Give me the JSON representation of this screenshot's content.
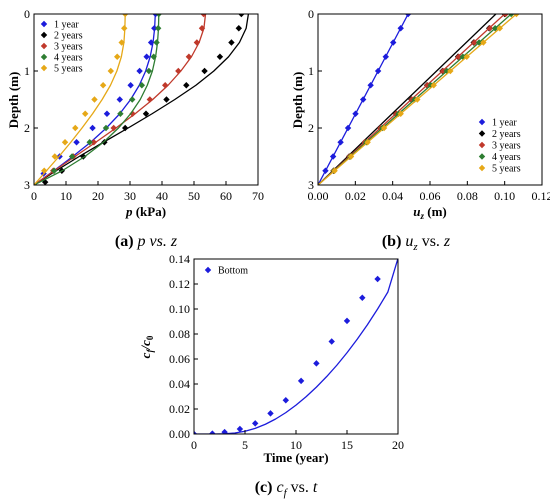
{
  "chart_data": [
    {
      "type": "line",
      "id": "a",
      "caption_tag": "(a)",
      "caption_math": "p vs. z",
      "xlabel_var": "p",
      "xlabel_unit": " (kPa)",
      "ylabel": "Depth (m)",
      "xlim": [
        0,
        70
      ],
      "ylim": [
        3,
        0
      ],
      "xticks": [
        "0",
        "10",
        "20",
        "30",
        "40",
        "50",
        "60",
        "70"
      ],
      "yticks": [
        "0",
        "1",
        "2",
        "3"
      ],
      "grid": false,
      "legend": "top-left",
      "series": [
        {
          "name": "1 year",
          "color": "#1c1cdc",
          "marker": "diamond",
          "line_x": [
            37.9,
            37.7,
            37.2,
            36.3,
            34.9,
            32.9,
            30.2,
            26.8,
            22.6,
            17.7,
            12.1,
            6.2,
            0.0
          ],
          "line_y": [
            0,
            0.25,
            0.5,
            0.75,
            1.0,
            1.25,
            1.5,
            1.75,
            2.0,
            2.25,
            2.5,
            2.75,
            3.0
          ],
          "points_x": [
            38.0,
            37.6,
            36.6,
            35.2,
            33.0,
            30.2,
            26.8,
            22.8,
            18.3,
            13.3,
            8.0,
            3.0
          ],
          "points_y": [
            0,
            0.25,
            0.5,
            0.75,
            1.0,
            1.25,
            1.5,
            1.75,
            2.0,
            2.25,
            2.5,
            2.8
          ]
        },
        {
          "name": "2 years",
          "color": "#000000",
          "marker": "diamond",
          "line_x": [
            67.0,
            66.3,
            64.2,
            60.8,
            56.2,
            50.6,
            44.0,
            36.9,
            29.4,
            21.7,
            14.1,
            6.9,
            0.0
          ],
          "line_y": [
            0,
            0.25,
            0.5,
            0.75,
            1.0,
            1.25,
            1.5,
            1.75,
            2.0,
            2.25,
            2.5,
            2.75,
            3.0
          ],
          "points_x": [
            64.8,
            64.0,
            61.7,
            58.1,
            53.3,
            47.6,
            41.4,
            35.0,
            28.5,
            22.0,
            15.4,
            8.7,
            3.5
          ],
          "points_y": [
            0,
            0.25,
            0.5,
            0.75,
            1.0,
            1.25,
            1.5,
            1.75,
            2.0,
            2.25,
            2.5,
            2.75,
            2.95
          ]
        },
        {
          "name": "3 years",
          "color": "#c0392b",
          "marker": "diamond",
          "line_x": [
            53.6,
            53.1,
            51.6,
            49.2,
            45.9,
            41.9,
            37.1,
            31.6,
            25.6,
            19.3,
            12.8,
            6.3,
            0.0
          ],
          "line_y": [
            0,
            0.25,
            0.5,
            0.75,
            1.0,
            1.25,
            1.5,
            1.75,
            2.0,
            2.25,
            2.5,
            2.75,
            3.0
          ],
          "points_x": [
            53.0,
            52.5,
            50.9,
            48.4,
            45.1,
            41.0,
            36.2,
            30.8,
            24.9,
            18.7,
            12.3,
            6.0
          ],
          "points_y": [
            0,
            0.25,
            0.5,
            0.75,
            1.0,
            1.25,
            1.5,
            1.75,
            2.0,
            2.25,
            2.5,
            2.75
          ]
        },
        {
          "name": "4 years",
          "color": "#2e7d32",
          "marker": "diamond",
          "line_x": [
            39.0,
            38.9,
            38.6,
            38.0,
            37.0,
            35.4,
            33.2,
            30.2,
            26.4,
            21.7,
            15.9,
            8.8,
            0.0
          ],
          "line_y": [
            0,
            0.25,
            0.5,
            0.75,
            1.0,
            1.25,
            1.5,
            1.75,
            2.0,
            2.25,
            2.5,
            2.75,
            3.0
          ],
          "points_x": [
            39.0,
            38.8,
            38.3,
            37.4,
            35.9,
            33.7,
            30.7,
            27.0,
            22.5,
            17.4,
            11.9,
            6.3
          ],
          "points_y": [
            0,
            0.25,
            0.5,
            0.75,
            1.0,
            1.25,
            1.5,
            1.75,
            2.0,
            2.25,
            2.5,
            2.75
          ]
        },
        {
          "name": "5 years",
          "color": "#e6a817",
          "marker": "diamond",
          "line_x": [
            28.5,
            28.4,
            28.1,
            27.3,
            25.9,
            23.9,
            21.3,
            18.3,
            15.0,
            11.5,
            7.8,
            3.9,
            0.0
          ],
          "line_y": [
            0,
            0.25,
            0.5,
            0.75,
            1.0,
            1.25,
            1.5,
            1.75,
            2.0,
            2.25,
            2.5,
            2.75,
            3.0
          ],
          "points_x": [
            28.5,
            28.2,
            27.4,
            26.0,
            24.0,
            21.6,
            18.9,
            16.0,
            12.9,
            9.7,
            6.5,
            3.2
          ],
          "points_y": [
            0,
            0.25,
            0.5,
            0.75,
            1.0,
            1.25,
            1.5,
            1.75,
            2.0,
            2.25,
            2.5,
            2.75
          ]
        }
      ]
    },
    {
      "type": "line",
      "id": "b",
      "caption_tag": "(b)",
      "caption_math": "u",
      "caption_sub": "z",
      "caption_rest": " vs. ",
      "caption_var2": "z",
      "xlabel_var": "u",
      "xlabel_sub": "z",
      "xlabel_unit": " (m)",
      "ylabel": "Depth (m)",
      "xlim": [
        0,
        0.12
      ],
      "ylim": [
        3,
        0
      ],
      "xticks": [
        "0.00",
        "0.02",
        "0.04",
        "0.06",
        "0.08",
        "0.10",
        "0.12"
      ],
      "yticks": [
        "0",
        "1",
        "2",
        "3"
      ],
      "grid": false,
      "legend": "bottom-right",
      "series": [
        {
          "name": "1 year",
          "color": "#1c1cdc",
          "marker": "diamond",
          "line_x": [
            0.0,
            0.0483
          ],
          "line_y": [
            3,
            0
          ],
          "points_x": [
            0.0483,
            0.0443,
            0.0403,
            0.0363,
            0.0322,
            0.0282,
            0.0242,
            0.0201,
            0.0161,
            0.0121,
            0.0081,
            0.004
          ],
          "points_y": [
            0,
            0.25,
            0.5,
            0.75,
            1.0,
            1.25,
            1.5,
            1.75,
            2.0,
            2.25,
            2.5,
            2.75
          ]
        },
        {
          "name": "2 years",
          "color": "#000000",
          "marker": "diamond",
          "line_x": [
            0.0,
            0.0953
          ],
          "line_y": [
            3,
            0
          ],
          "points_x": [
            0.1,
            0.0917,
            0.0834,
            0.075,
            0.0667,
            0.0584,
            0.05,
            0.0417,
            0.0334,
            0.025,
            0.0167,
            0.0083
          ],
          "points_y": [
            0,
            0.25,
            0.5,
            0.75,
            1.0,
            1.25,
            1.5,
            1.75,
            2.0,
            2.25,
            2.5,
            2.75
          ]
        },
        {
          "name": "3 years",
          "color": "#c0392b",
          "marker": "diamond",
          "line_x": [
            0.0,
            0.1
          ],
          "line_y": [
            3,
            0
          ],
          "points_x": [
            0.1005,
            0.0921,
            0.0838,
            0.0754,
            0.067,
            0.0586,
            0.0503,
            0.0419,
            0.0335,
            0.0251,
            0.0168,
            0.0084
          ],
          "points_y": [
            0,
            0.25,
            0.5,
            0.75,
            1.0,
            1.25,
            1.5,
            1.75,
            2.0,
            2.25,
            2.5,
            2.75
          ]
        },
        {
          "name": "4 years",
          "color": "#2e7d32",
          "marker": "diamond",
          "line_x": [
            0.0,
            0.1035
          ],
          "line_y": [
            3,
            0
          ],
          "points_x": [
            0.1035,
            0.0949,
            0.0863,
            0.0776,
            0.069,
            0.0604,
            0.0518,
            0.0431,
            0.0345,
            0.0259,
            0.0173,
            0.0086
          ],
          "points_y": [
            0,
            0.25,
            0.5,
            0.75,
            1.0,
            1.25,
            1.5,
            1.75,
            2.0,
            2.25,
            2.5,
            2.75
          ]
        },
        {
          "name": "5 years",
          "color": "#e6a817",
          "marker": "diamond",
          "line_x": [
            0.0,
            0.1063
          ],
          "line_y": [
            3,
            0
          ],
          "points_x": [
            0.1063,
            0.0974,
            0.0886,
            0.0797,
            0.0709,
            0.062,
            0.0532,
            0.0443,
            0.0354,
            0.0266,
            0.0177,
            0.0089
          ],
          "points_y": [
            0,
            0.25,
            0.5,
            0.75,
            1.0,
            1.25,
            1.5,
            1.75,
            2.0,
            2.25,
            2.5,
            2.75
          ]
        }
      ]
    },
    {
      "type": "line",
      "id": "c",
      "caption_tag": "(c)",
      "caption_math": "c",
      "caption_sub": "f",
      "caption_rest": " vs. ",
      "caption_var2": "t",
      "xlabel_plain": "Time (year)",
      "ylabel_var": "c",
      "ylabel_sub": "f",
      "ylabel_rest": "/c",
      "ylabel_sub2": "0",
      "xlim": [
        0,
        20
      ],
      "ylim": [
        0,
        0.14
      ],
      "xticks": [
        "0",
        "5",
        "10",
        "15",
        "20"
      ],
      "yticks": [
        "0.00",
        "0.02",
        "0.04",
        "0.06",
        "0.08",
        "0.10",
        "0.12",
        "0.14"
      ],
      "grid": false,
      "legend": "top-left",
      "series": [
        {
          "name": "Bottom",
          "color": "#1c1cdc",
          "marker": "diamond",
          "line_x": [
            0,
            1,
            2,
            3,
            4,
            5,
            6,
            7,
            8,
            9,
            10,
            11,
            12,
            13,
            14,
            15,
            16,
            17,
            18,
            19,
            20
          ],
          "line_y": [
            0,
            0,
            0,
            0.0002,
            0.0008,
            0.0022,
            0.0045,
            0.0078,
            0.012,
            0.0171,
            0.0231,
            0.0299,
            0.0375,
            0.0459,
            0.055,
            0.065,
            0.0758,
            0.0874,
            0.1,
            0.1135,
            0.1405
          ],
          "points_x": [
            0,
            1.8,
            3.0,
            4.5,
            6.0,
            7.5,
            9.0,
            10.5,
            12.0,
            13.5,
            15.0,
            16.5,
            18.0
          ],
          "points_y": [
            0.0,
            0.0003,
            0.0015,
            0.004,
            0.0085,
            0.0165,
            0.027,
            0.0425,
            0.0565,
            0.074,
            0.0905,
            0.109,
            0.124
          ]
        }
      ]
    }
  ]
}
